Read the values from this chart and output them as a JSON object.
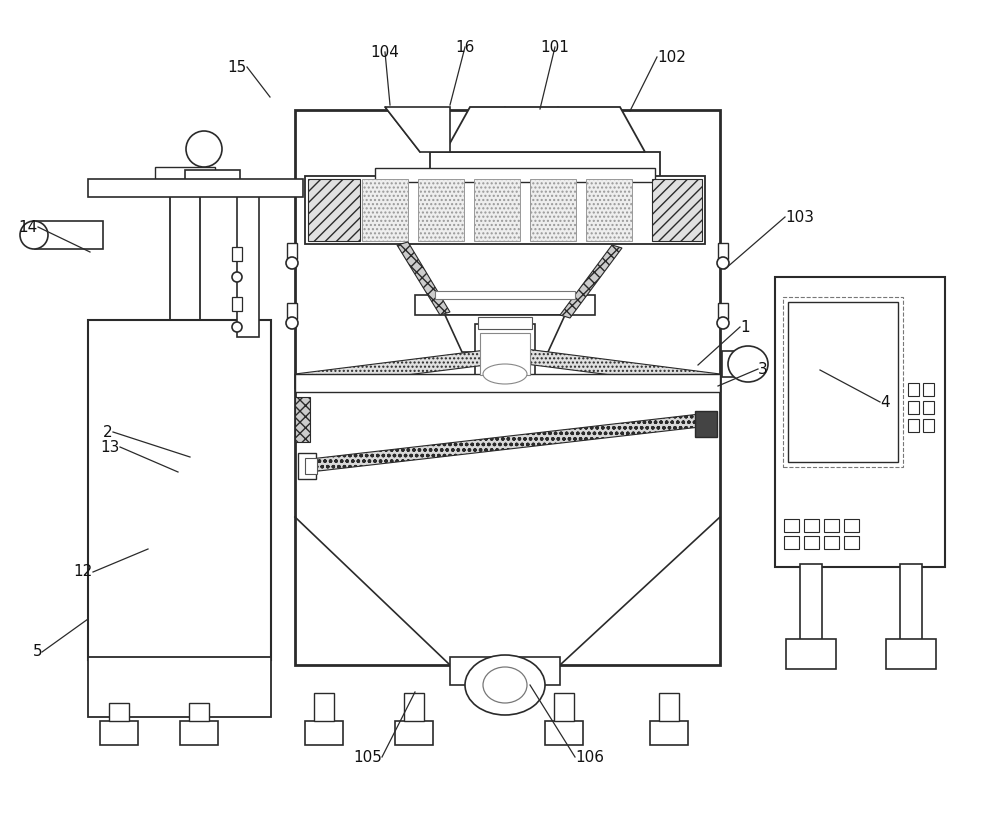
{
  "bg": "#ffffff",
  "lc": "#2a2a2a",
  "fig_w": 10.0,
  "fig_h": 8.17,
  "dpi": 100,
  "label_fs": 11,
  "labels": {
    "1": [
      740,
      490,
      698,
      452
    ],
    "2": [
      113,
      385,
      190,
      360
    ],
    "3": [
      758,
      448,
      718,
      431
    ],
    "4": [
      880,
      415,
      820,
      447
    ],
    "5": [
      42,
      165,
      88,
      198
    ],
    "12": [
      93,
      245,
      148,
      268
    ],
    "13": [
      120,
      370,
      178,
      345
    ],
    "14": [
      38,
      590,
      90,
      565
    ],
    "15": [
      247,
      750,
      270,
      720
    ],
    "16": [
      465,
      770,
      450,
      712
    ],
    "101": [
      555,
      770,
      540,
      708
    ],
    "102": [
      657,
      760,
      630,
      706
    ],
    "103": [
      785,
      600,
      725,
      548
    ],
    "104": [
      385,
      765,
      390,
      712
    ],
    "105": [
      382,
      60,
      415,
      125
    ],
    "106": [
      575,
      60,
      530,
      132
    ]
  }
}
